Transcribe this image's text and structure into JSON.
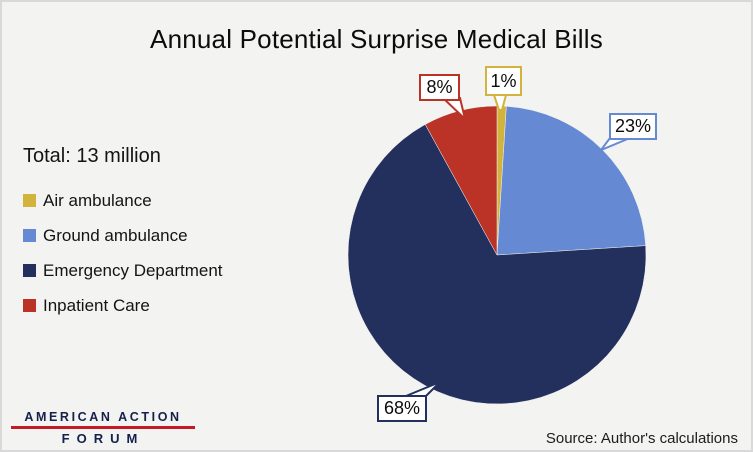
{
  "title": "Annual Potential Surprise Medical Bills",
  "total_label": "Total: 13 million",
  "source_note": "Source: Author's calculations",
  "logo": {
    "line1": "AMERICAN ACTION",
    "line2": "FORUM",
    "text_color": "#15214b",
    "underline_color": "#c41a27"
  },
  "chart_data": {
    "type": "pie",
    "title": "Annual Potential Surprise Medical Bills",
    "total": "13 million",
    "units": "percent of annual potential surprise medical bills",
    "start_angle_deg": 0,
    "direction": "clockwise",
    "legend_position": "left",
    "slices": [
      {
        "label": "Air ambulance",
        "value": 1,
        "percent_label": "1%",
        "color": "#d2b33b"
      },
      {
        "label": "Ground ambulance",
        "value": 23,
        "percent_label": "23%",
        "color": "#6589d2"
      },
      {
        "label": "Emergency Department",
        "value": 68,
        "percent_label": "68%",
        "color": "#23305e"
      },
      {
        "label": "Inpatient Care",
        "value": 8,
        "percent_label": "8%",
        "color": "#bb3227"
      }
    ]
  }
}
